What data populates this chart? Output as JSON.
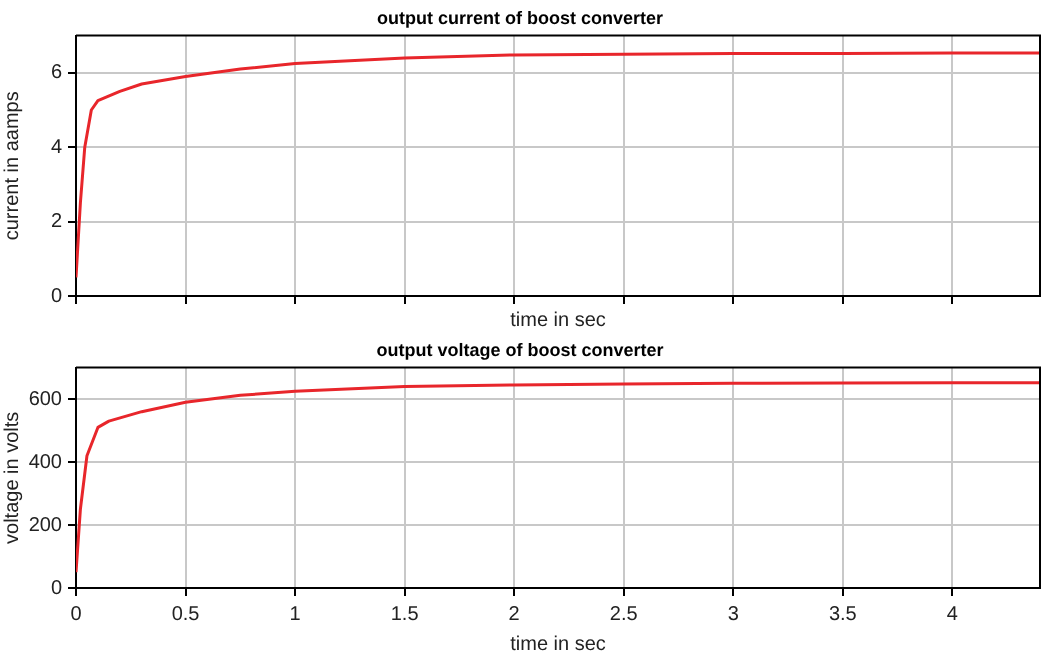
{
  "chart_data": [
    {
      "type": "line",
      "title": "output current of boost converter",
      "xlabel": "time in sec",
      "ylabel": "current in aamps",
      "xlim": [
        0,
        4.4
      ],
      "xticks": [
        0,
        0.5,
        1,
        1.5,
        2,
        2.5,
        3,
        3.5,
        4
      ],
      "ylim": [
        0,
        7
      ],
      "yticks": [
        0,
        2,
        4,
        6
      ],
      "grid": true,
      "tick_labels": "y",
      "marker": "none",
      "series": [
        {
          "color": "#e8262b",
          "x": [
            0,
            0.02,
            0.04,
            0.07,
            0.1,
            0.2,
            0.3,
            0.5,
            0.75,
            1,
            1.5,
            2,
            2.5,
            3,
            3.5,
            4,
            4.4
          ],
          "values": [
            0.5,
            2.5,
            4,
            5,
            5.25,
            5.5,
            5.7,
            5.9,
            6.1,
            6.25,
            6.4,
            6.48,
            6.5,
            6.52,
            6.52,
            6.53,
            6.53
          ]
        }
      ]
    },
    {
      "type": "line",
      "title": "output voltage of boost converter",
      "xlabel": "time in sec",
      "ylabel": "voltage in volts",
      "xlim": [
        0,
        4.4
      ],
      "xticks": [
        0,
        0.5,
        1,
        1.5,
        2,
        2.5,
        3,
        3.5,
        4
      ],
      "ylim": [
        0,
        700
      ],
      "yticks": [
        0,
        200,
        400,
        600
      ],
      "grid": true,
      "marker": "none",
      "series": [
        {
          "color": "#e8262b",
          "x": [
            0,
            0.02,
            0.05,
            0.1,
            0.15,
            0.3,
            0.5,
            0.75,
            1,
            1.5,
            2,
            2.5,
            3,
            3.5,
            4,
            4.4
          ],
          "values": [
            50,
            250,
            420,
            510,
            530,
            560,
            590,
            612,
            625,
            640,
            645,
            648,
            650,
            651,
            652,
            652
          ]
        }
      ]
    }
  ]
}
